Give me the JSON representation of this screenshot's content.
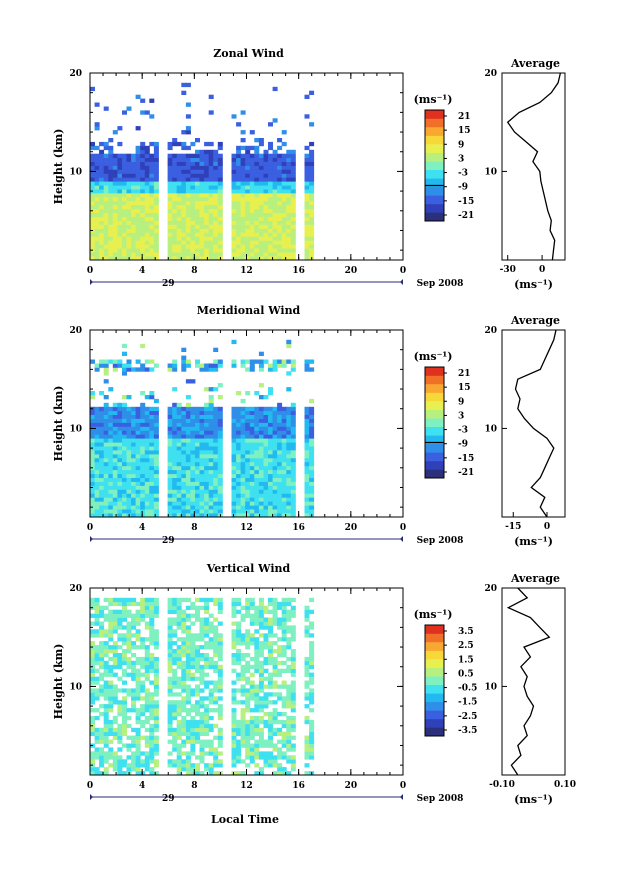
{
  "figure": {
    "xlabel": "Local Time",
    "height_label": "Height (km)",
    "date_label": "Sep 2008",
    "day_label": "29",
    "average_title": "Average"
  },
  "chart_data": [
    {
      "type": "heatmap",
      "title": "Zonal Wind",
      "xlabel": "Local Time",
      "ylabel": "Height (km)",
      "xlim": [
        0,
        24
      ],
      "ylim": [
        1,
        20
      ],
      "xticks": [
        "0",
        "4",
        "8",
        "12",
        "16",
        "20",
        "0"
      ],
      "yticks": [
        "10",
        "20"
      ],
      "data_time_range": [
        0,
        17
      ],
      "gap_times": [
        5.3,
        10.3,
        16.0
      ],
      "cbar_unit": "(ms⁻¹)",
      "cbar_ticks": [
        "21",
        "15",
        "9",
        "3",
        "-3",
        "-9",
        "-15",
        "-21"
      ],
      "cbar_range": [
        -24,
        24
      ],
      "profile": {
        "title": "Average",
        "xlabel": "(ms⁻¹)",
        "xlim": [
          -35,
          20
        ],
        "xticks": [
          "-30",
          "0"
        ],
        "heights": [
          1,
          2,
          3,
          4,
          5,
          6,
          7,
          8,
          9,
          10,
          11,
          12,
          13,
          14,
          15,
          16,
          17,
          18,
          19,
          20
        ],
        "values": [
          9,
          10,
          11,
          7,
          8,
          5,
          3,
          1,
          -1,
          -2,
          -8,
          -4,
          -14,
          -24,
          -30,
          -20,
          -2,
          8,
          14,
          16
        ]
      }
    },
    {
      "type": "heatmap",
      "title": "Meridional Wind",
      "xlabel": "Local Time",
      "ylabel": "Height (km)",
      "xlim": [
        0,
        24
      ],
      "ylim": [
        1,
        20
      ],
      "xticks": [
        "0",
        "4",
        "8",
        "12",
        "16",
        "20",
        "0"
      ],
      "yticks": [
        "10",
        "20"
      ],
      "data_time_range": [
        0,
        17
      ],
      "gap_times": [
        5.3,
        10.3,
        16.0
      ],
      "cbar_unit": "(ms⁻¹)",
      "cbar_ticks": [
        "21",
        "15",
        "9",
        "3",
        "-3",
        "-9",
        "-15",
        "-21"
      ],
      "cbar_range": [
        -24,
        24
      ],
      "profile": {
        "title": "Average",
        "xlabel": "(ms⁻¹)",
        "xlim": [
          -20,
          8
        ],
        "xticks": [
          "-15",
          "0"
        ],
        "heights": [
          1,
          2,
          3,
          4,
          5,
          6,
          7,
          8,
          9,
          10,
          11,
          12,
          13,
          14,
          15,
          16,
          17,
          18,
          19,
          20
        ],
        "values": [
          0,
          -3,
          -1,
          -7,
          -3,
          -1,
          1,
          3,
          0,
          -6,
          -10,
          -13,
          -12,
          -14,
          -13,
          -3,
          -1,
          1,
          3,
          4
        ]
      }
    },
    {
      "type": "heatmap",
      "title": "Vertical Wind",
      "xlabel": "Local Time",
      "ylabel": "Height (km)",
      "xlim": [
        0,
        24
      ],
      "ylim": [
        1,
        20
      ],
      "xticks": [
        "0",
        "4",
        "8",
        "12",
        "16",
        "20",
        "0"
      ],
      "yticks": [
        "10",
        "20"
      ],
      "data_time_range": [
        0,
        17
      ],
      "gap_times": [
        5.3,
        10.3,
        16.0
      ],
      "cbar_unit": "(ms⁻¹)",
      "cbar_ticks": [
        "3.5",
        "2.5",
        "1.5",
        "0.5",
        "-0.5",
        "-1.5",
        "-2.5",
        "-3.5"
      ],
      "cbar_range": [
        -4,
        4
      ],
      "profile": {
        "title": "Average",
        "xlabel": "(ms⁻¹)",
        "xlim": [
          -0.1,
          0.1
        ],
        "xticks": [
          "-0.10",
          "0.10"
        ],
        "heights": [
          1,
          2,
          3,
          4,
          5,
          6,
          7,
          8,
          9,
          10,
          11,
          12,
          13,
          14,
          15,
          16,
          17,
          18,
          19,
          20
        ],
        "values": [
          -0.05,
          -0.07,
          -0.04,
          -0.05,
          -0.02,
          -0.03,
          -0.01,
          0.0,
          -0.02,
          -0.03,
          -0.02,
          -0.04,
          -0.01,
          -0.03,
          0.05,
          0.02,
          -0.01,
          -0.08,
          -0.02,
          -0.05
        ]
      }
    }
  ]
}
